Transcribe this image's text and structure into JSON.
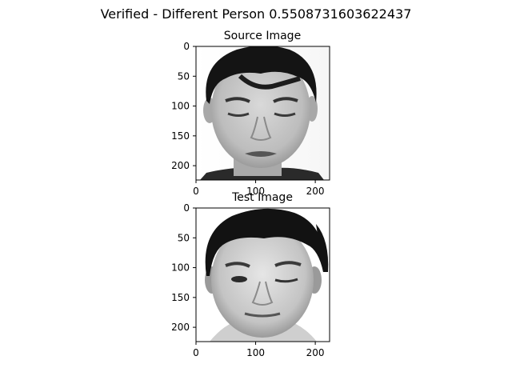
{
  "figure": {
    "suptitle": "Verified - Different Person 0.5508731603622437"
  },
  "panels": [
    {
      "title": "Source Image",
      "image_kind": "grayscale-face-photo",
      "face_state": "eyes-closed",
      "x_ticks": [
        "0",
        "100",
        "200"
      ],
      "y_ticks": [
        "0",
        "50",
        "100",
        "150",
        "200"
      ],
      "x_tick_values": [
        0,
        100,
        200
      ],
      "y_tick_values": [
        0,
        50,
        100,
        150,
        200
      ]
    },
    {
      "title": "Test Image",
      "image_kind": "grayscale-face-photo",
      "face_state": "winking",
      "x_ticks": [
        "0",
        "100",
        "200"
      ],
      "y_ticks": [
        "0",
        "50",
        "100",
        "150",
        "200"
      ],
      "x_tick_values": [
        0,
        100,
        200
      ],
      "y_tick_values": [
        0,
        50,
        100,
        150,
        200
      ]
    }
  ],
  "image_extent": [
    0,
    224
  ]
}
